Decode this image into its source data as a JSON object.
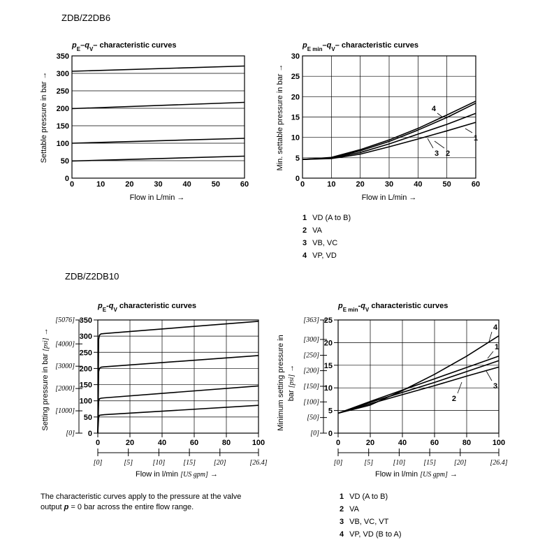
{
  "sections": {
    "top": "ZDB/Z2DB6",
    "bottom": "ZDB/Z2DB10"
  },
  "note": {
    "text_a": "The characteristic curves apply to the pressure at the valve",
    "text_b_pre": "output ",
    "text_b_p": "p",
    "text_b_post": " = 0 bar across the entire flow range."
  },
  "legends": {
    "top": [
      {
        "num": "1",
        "label": "VD (A to B)"
      },
      {
        "num": "2",
        "label": "VA"
      },
      {
        "num": "3",
        "label": "VB, VC"
      },
      {
        "num": "4",
        "label": "VP, VD"
      }
    ],
    "bottom": [
      {
        "num": "1",
        "label": "VD (A to B)"
      },
      {
        "num": "2",
        "label": "VA"
      },
      {
        "num": "3",
        "label": "VB, VC, VT"
      },
      {
        "num": "4",
        "label": "VP, VD (B to A)"
      }
    ]
  },
  "chart_data": [
    {
      "type": "line",
      "title": {
        "p": "p",
        "pSub": "E",
        "dash1": "–",
        "q": "q",
        "qSub": "V",
        "rest": "– characteristic curves"
      },
      "xlabel": "Flow in L/min →",
      "ylabel": "Settable pressure in bar →",
      "xlim": [
        0,
        60
      ],
      "ylim": [
        0,
        350
      ],
      "xticks": [
        0,
        10,
        20,
        30,
        40,
        50,
        60
      ],
      "yticks": [
        0,
        50,
        100,
        150,
        200,
        250,
        300,
        350
      ],
      "grid": "horizontal",
      "series": [
        {
          "x": [
            0,
            60
          ],
          "y": [
            306,
            321
          ]
        },
        {
          "x": [
            0,
            60
          ],
          "y": [
            199,
            217
          ]
        },
        {
          "x": [
            0,
            60
          ],
          "y": [
            100,
            114
          ]
        },
        {
          "x": [
            0,
            60
          ],
          "y": [
            49,
            63
          ]
        }
      ]
    },
    {
      "type": "line",
      "title": {
        "p": "p",
        "pSub": "E min",
        "dash1": "–",
        "q": "q",
        "qSub": "V",
        "rest": "– characteristic curves"
      },
      "xlabel": "Flow in L/min →",
      "ylabel": "Min. settable pressure in bar →",
      "xlim": [
        0,
        60
      ],
      "ylim": [
        0,
        30
      ],
      "xticks": [
        0,
        10,
        20,
        30,
        40,
        50,
        60
      ],
      "yticks": [
        0,
        5,
        10,
        15,
        20,
        25,
        30
      ],
      "grid": "both",
      "series": [
        {
          "name": "1",
          "x": [
            0,
            10,
            20,
            30,
            40,
            50,
            60
          ],
          "y": [
            4.6,
            4.8,
            5.9,
            7.7,
            9.6,
            11.6,
            13.7
          ]
        },
        {
          "name": "2",
          "x": [
            0,
            10,
            20,
            30,
            40,
            50,
            60
          ],
          "y": [
            4.6,
            4.9,
            6.3,
            8.4,
            10.8,
            13.2,
            15.9
          ]
        },
        {
          "name": "3",
          "x": [
            0,
            10,
            20,
            30,
            40,
            50,
            60
          ],
          "y": [
            4.6,
            5.0,
            6.7,
            9.0,
            11.8,
            14.9,
            18.4
          ]
        },
        {
          "name": "4",
          "x": [
            0,
            10,
            20,
            30,
            40,
            50,
            60
          ],
          "y": [
            4.6,
            5.1,
            7.0,
            9.4,
            12.2,
            15.5,
            18.9
          ]
        }
      ],
      "curve_labels": [
        "1",
        "2",
        "3",
        "4"
      ]
    },
    {
      "type": "line",
      "title": {
        "p": "p",
        "pSub": "E",
        "dash1": "-",
        "q": "q",
        "qSub": "V",
        "rest": " characteristic curves"
      },
      "xlabel_pre": "Flow in l/min ",
      "xlabel_unit": "[US gpm]",
      "xlabel_post": " →",
      "ylabel_pre": "Setting pressure in bar ",
      "ylabel_unit": "[psi]",
      "ylabel_post": " →",
      "xlim": [
        0,
        100
      ],
      "ylim": [
        0,
        350
      ],
      "xticks": [
        0,
        20,
        40,
        60,
        80,
        100
      ],
      "yticks": [
        0,
        50,
        100,
        150,
        200,
        250,
        300,
        350
      ],
      "sec_xticks": [
        {
          "label": "[0]",
          "x": 0
        },
        {
          "label": "[5]",
          "x": 19
        },
        {
          "label": "[10]",
          "x": 38
        },
        {
          "label": "[15]",
          "x": 57
        },
        {
          "label": "[20]",
          "x": 76
        },
        {
          "label": "[26.4]",
          "x": 100
        }
      ],
      "sec_yticks": [
        {
          "label": "[0]",
          "y": 0
        },
        {
          "label": "[1000]",
          "y": 69
        },
        {
          "label": "[2000]",
          "y": 138
        },
        {
          "label": "[3000]",
          "y": 207
        },
        {
          "label": "[4000]",
          "y": 276
        },
        {
          "label": "[5076]",
          "y": 350
        }
      ],
      "grid": "both",
      "series": [
        {
          "x": [
            0,
            0.5,
            1,
            2,
            4,
            100
          ],
          "y": [
            0,
            290,
            303,
            307,
            308,
            346
          ]
        },
        {
          "x": [
            0,
            0.5,
            1,
            2,
            4,
            100
          ],
          "y": [
            0,
            190,
            200,
            204,
            205,
            240
          ]
        },
        {
          "x": [
            0,
            0.5,
            1,
            2,
            4,
            100
          ],
          "y": [
            0,
            100,
            106,
            108,
            109,
            146
          ]
        },
        {
          "x": [
            0,
            0.5,
            1,
            2,
            4,
            100
          ],
          "y": [
            0,
            50,
            55,
            56,
            57,
            86
          ]
        }
      ]
    },
    {
      "type": "line",
      "title": {
        "p": "p",
        "pSub": "E min",
        "dash1": "-",
        "q": "q",
        "qSub": "V",
        "rest": " characteristic curves"
      },
      "xlabel_pre": "Flow in l/min ",
      "xlabel_unit": "[US gpm]",
      "xlabel_post": " →",
      "ylabel_line1": "Minimum setting pressure in",
      "ylabel_pre": "bar ",
      "ylabel_unit": "[psi]",
      "ylabel_post": " →",
      "xlim": [
        0,
        100
      ],
      "ylim": [
        0,
        25
      ],
      "xticks": [
        0,
        20,
        40,
        60,
        80,
        100
      ],
      "yticks": [
        0,
        5,
        10,
        15,
        20,
        25
      ],
      "sec_xticks": [
        {
          "label": "[0]",
          "x": 0
        },
        {
          "label": "[5]",
          "x": 19
        },
        {
          "label": "[10]",
          "x": 38
        },
        {
          "label": "[15]",
          "x": 57
        },
        {
          "label": "[20]",
          "x": 76
        },
        {
          "label": "[26.4]",
          "x": 100
        }
      ],
      "sec_yticks": [
        {
          "label": "[0]",
          "y": 0
        },
        {
          "label": "[50]",
          "y": 3.45
        },
        {
          "label": "[100]",
          "y": 6.9
        },
        {
          "label": "[150]",
          "y": 10.35
        },
        {
          "label": "[200]",
          "y": 13.8
        },
        {
          "label": "[250]",
          "y": 17.2
        },
        {
          "label": "[300]",
          "y": 20.7
        },
        {
          "label": "[363]",
          "y": 25
        }
      ],
      "grid": "both",
      "series": [
        {
          "name": "1",
          "x": [
            0,
            20,
            40,
            60,
            80,
            100
          ],
          "y": [
            4.4,
            7.0,
            9.5,
            12.0,
            14.5,
            17.0
          ]
        },
        {
          "name": "2",
          "x": [
            0,
            20,
            40,
            60,
            80,
            100
          ],
          "y": [
            4.4,
            6.8,
            9.0,
            11.2,
            13.6,
            16.0
          ]
        },
        {
          "name": "3",
          "x": [
            0,
            20,
            40,
            60,
            80,
            100
          ],
          "y": [
            4.4,
            6.5,
            8.5,
            10.5,
            12.6,
            14.6
          ]
        },
        {
          "name": "4",
          "x": [
            0,
            20,
            40,
            60,
            80,
            100
          ],
          "y": [
            4.4,
            6.2,
            9.4,
            13.0,
            17.0,
            21.5
          ]
        }
      ],
      "curve_labels": [
        "1",
        "2",
        "3",
        "4"
      ]
    }
  ]
}
